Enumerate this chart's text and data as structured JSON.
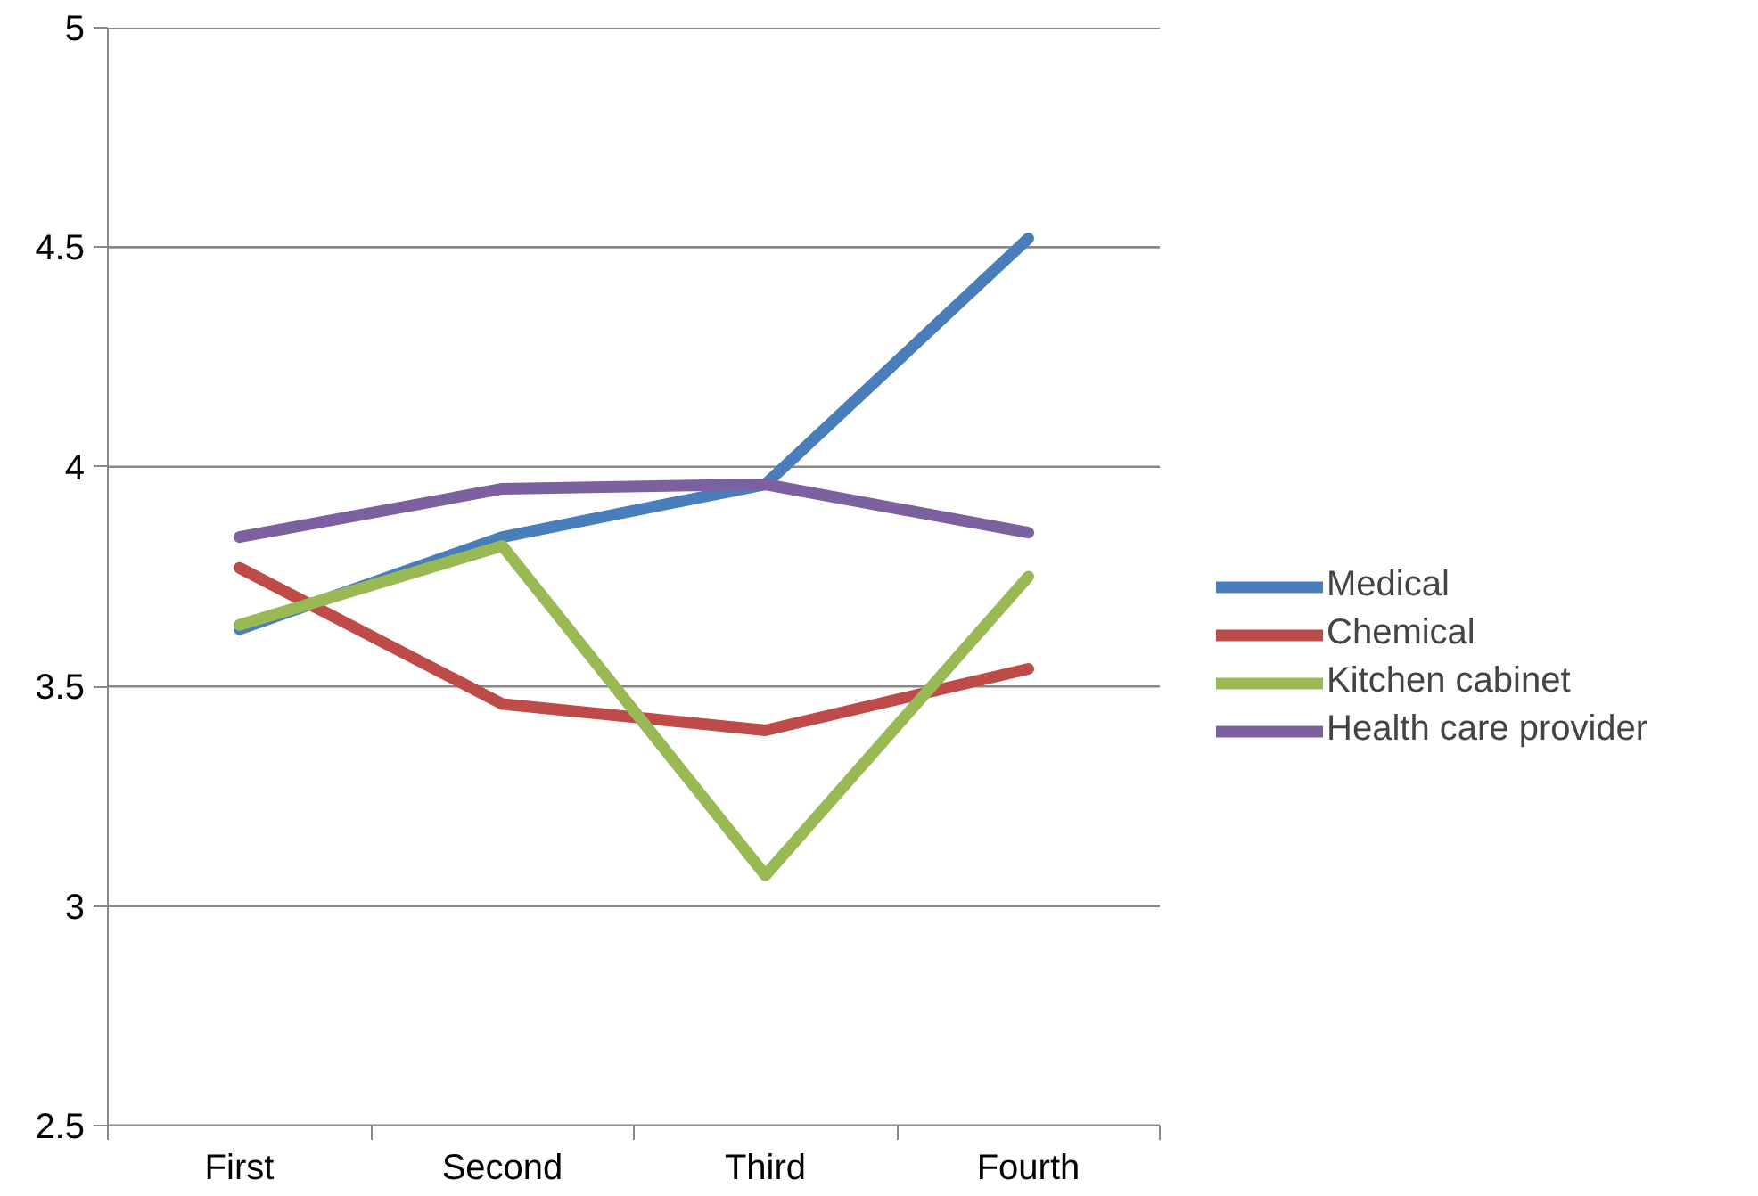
{
  "chart_data": {
    "type": "line",
    "categories": [
      "First",
      "Second",
      "Third",
      "Fourth"
    ],
    "series": [
      {
        "name": "Medical",
        "color": "#4a7ebb",
        "values": [
          3.63,
          3.84,
          3.96,
          4.52
        ]
      },
      {
        "name": "Chemical",
        "color": "#be4b48",
        "values": [
          3.77,
          3.46,
          3.4,
          3.54
        ]
      },
      {
        "name": "Kitchen cabinet",
        "color": "#98b954",
        "values": [
          3.64,
          3.82,
          3.07,
          3.75
        ]
      },
      {
        "name": "Health care provider",
        "color": "#7d60a0",
        "values": [
          3.84,
          3.95,
          3.96,
          3.85
        ]
      }
    ],
    "ylim": [
      2.5,
      5
    ],
    "yticks": [
      2.5,
      3,
      3.5,
      4,
      4.5,
      5
    ],
    "grid": "y",
    "legend": "right",
    "marker": "none",
    "line_style": "solid"
  }
}
